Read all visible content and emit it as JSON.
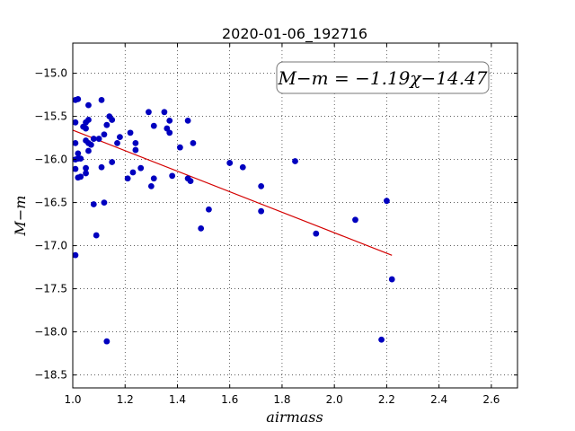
{
  "chart_data": {
    "type": "scatter",
    "title": "2020-01-06_192716",
    "xlabel": "airmass",
    "ylabel": "M−m",
    "xlim": [
      1.0,
      2.7
    ],
    "ylim": [
      -18.65,
      -14.65
    ],
    "xticks": [
      "1.0",
      "1.2",
      "1.4",
      "1.6",
      "1.8",
      "2.0",
      "2.2",
      "2.4",
      "2.6"
    ],
    "yticks": [
      "−15.0",
      "−15.5",
      "−16.0",
      "−16.5",
      "−17.0",
      "−17.5",
      "−18.0",
      "−18.5"
    ],
    "grid": true,
    "annotation": "M−m = −1.19χ−14.47",
    "colors": {
      "points": "#0000bf",
      "fit": "#d40000",
      "annotation_border": "#777777"
    },
    "fit": {
      "slope": -1.19,
      "intercept": -14.47,
      "x_range": [
        1.0,
        2.22
      ]
    },
    "series": [
      {
        "x": [
          1.01,
          1.02,
          1.01,
          1.06,
          1.06,
          1.05,
          1.11,
          1.14,
          1.13,
          1.15,
          1.29,
          1.35,
          1.37,
          1.44,
          1.36,
          1.31,
          1.05,
          1.01,
          1.12,
          1.18,
          1.22,
          1.24,
          1.37,
          1.46,
          1.41,
          1.02,
          1.01,
          1.06,
          1.07,
          1.08,
          1.1,
          1.05,
          1.06,
          1.15,
          1.24,
          1.02,
          1.03,
          1.01,
          1.17,
          1.11,
          1.26,
          1.05,
          1.23,
          1.05,
          1.03,
          1.02,
          1.21,
          1.31,
          1.38,
          1.44,
          1.45,
          1.3,
          1.08,
          1.12,
          1.6,
          1.65,
          1.85,
          1.72,
          1.52,
          1.72,
          1.49,
          1.93,
          2.08,
          2.2,
          2.22,
          1.09,
          1.01,
          1.13,
          2.18,
          1.04
        ],
        "y": [
          -15.31,
          -15.3,
          -15.57,
          -15.37,
          -15.54,
          -15.57,
          -15.31,
          -15.5,
          -15.6,
          -15.54,
          -15.45,
          -15.45,
          -15.55,
          -15.55,
          -15.64,
          -15.61,
          -15.64,
          -15.81,
          -15.71,
          -15.74,
          -15.69,
          -15.81,
          -15.69,
          -15.81,
          -15.86,
          -15.93,
          -16.0,
          -15.81,
          -15.83,
          -15.76,
          -15.76,
          -15.78,
          -15.9,
          -16.03,
          -15.89,
          -15.99,
          -15.99,
          -16.11,
          -15.81,
          -16.09,
          -16.1,
          -16.1,
          -16.15,
          -16.16,
          -16.2,
          -16.21,
          -16.22,
          -16.22,
          -16.19,
          -16.22,
          -16.25,
          -16.31,
          -16.52,
          -16.5,
          -16.04,
          -16.09,
          -16.02,
          -16.31,
          -16.58,
          -16.6,
          -16.8,
          -16.86,
          -16.7,
          -16.48,
          -17.39,
          -16.88,
          -17.11,
          -18.11,
          -18.09,
          -15.62
        ]
      }
    ]
  }
}
